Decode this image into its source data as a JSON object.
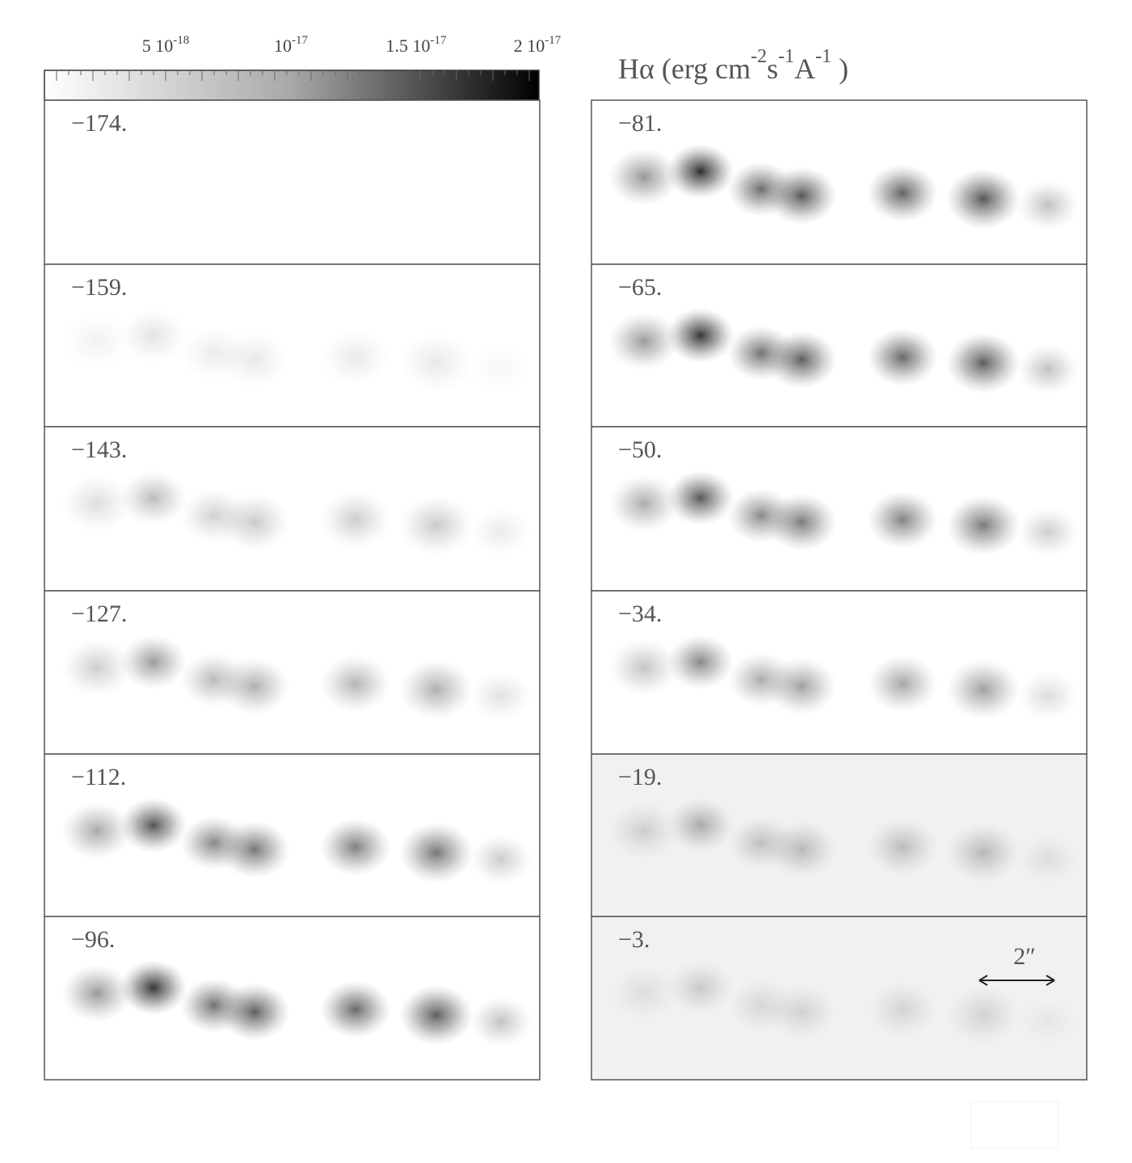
{
  "colorbar": {
    "ticks": [
      {
        "mantissa": "5 10",
        "exponent": "-18"
      },
      {
        "mantissa": "10",
        "exponent": "-17"
      },
      {
        "mantissa": "1.5 10",
        "exponent": "-17"
      },
      {
        "mantissa": "2 10",
        "exponent": "-17"
      }
    ]
  },
  "title": {
    "segments": [
      {
        "text": "Hα  (erg cm"
      },
      {
        "sup": "-2"
      },
      {
        "text": "s"
      },
      {
        "sup": "-1"
      },
      {
        "text": "A"
      },
      {
        "sup": "-1"
      },
      {
        "text": " )"
      }
    ]
  },
  "panels": {
    "left": [
      "−174.",
      "−159.",
      "−143.",
      "−127.",
      "−112.",
      "−96."
    ],
    "right": [
      "−81.",
      "−65.",
      "−50.",
      "−34.",
      "−19.",
      "−3."
    ]
  },
  "scale_bar": {
    "label": "2″"
  }
}
